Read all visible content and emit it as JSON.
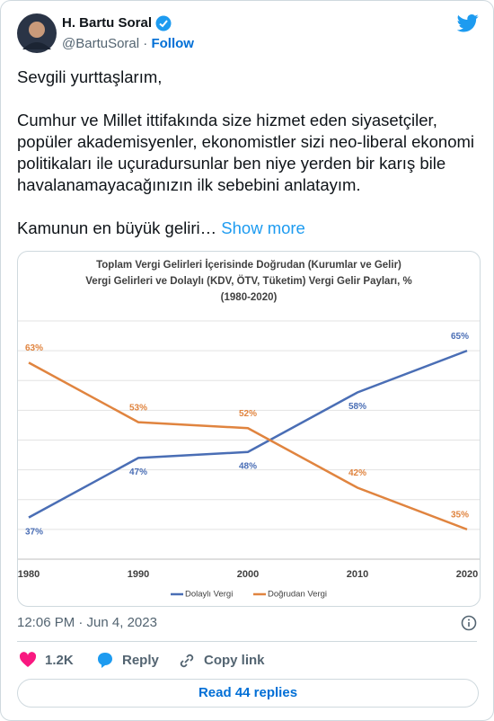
{
  "author": {
    "name": "H. Bartu Soral",
    "handle": "@BartuSoral",
    "separator": "·",
    "follow": "Follow"
  },
  "body": {
    "greeting": "Sevgili yurttaşlarım,",
    "paragraph": "Cumhur ve Millet ittifakında size hizmet eden siyasetçiler, popüler akademisyenler, ekonomistler sizi neo-liberal ekonomi politikaları ile uçuradursunlar ben niye yerden bir karış bile havalanamayacağınızın ilk sebebini anlatayım.",
    "teaser": "Kamunun en büyük geliri…",
    "show_more": "Show more"
  },
  "chart_data": {
    "type": "line",
    "title": [
      "Toplam Vergi Gelirleri İçerisinde Doğrudan (Kurumlar ve Gelir)",
      "Vergi Gelirleri ve Dolaylı (KDV, ÖTV, Tüketim) Vergi Gelir Payları, %",
      "(1980-2020)"
    ],
    "x": [
      1980,
      1990,
      2000,
      2010,
      2020
    ],
    "xlim": [
      1980,
      2020
    ],
    "xticks": [
      1980,
      1990,
      2000,
      2010,
      2020
    ],
    "ylim": [
      30,
      70
    ],
    "yticks": [
      30,
      35,
      40,
      45,
      50,
      55,
      60,
      65,
      70
    ],
    "grid": true,
    "legend": "bottom",
    "series": [
      {
        "name": "Dolaylı Vergi",
        "color": "#4a6eb5",
        "values": [
          37,
          47,
          48,
          58,
          65
        ],
        "value_labels": [
          "37%",
          "47%",
          "48%",
          "58%",
          "65%"
        ]
      },
      {
        "name": "Doğrudan Vergi",
        "color": "#e0843f",
        "values": [
          63,
          53,
          52,
          42,
          35
        ],
        "value_labels": [
          "63%",
          "53%",
          "52%",
          "42%",
          "35%"
        ]
      }
    ]
  },
  "footer": {
    "time": "12:06 PM · Jun 4, 2023",
    "likes": "1.2K",
    "reply": "Reply",
    "copy_link": "Copy link",
    "read_replies": "Read 44 replies"
  }
}
